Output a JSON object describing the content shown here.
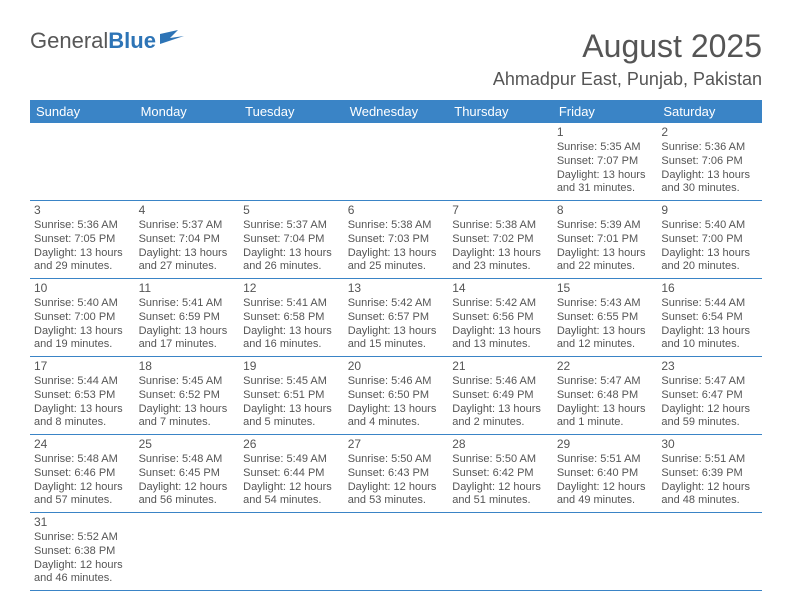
{
  "brand": {
    "part1": "General",
    "part2": "Blue"
  },
  "title": "August 2025",
  "location": "Ahmadpur East, Punjab, Pakistan",
  "colors": {
    "header_bg": "#3a84c6",
    "header_text": "#ffffff",
    "text": "#555555",
    "border": "#3a84c6",
    "brand_blue": "#2d74b6"
  },
  "fonts": {
    "title_size": 32,
    "location_size": 18,
    "header_size": 13,
    "cell_size": 11,
    "daynum_size": 12
  },
  "day_headers": [
    "Sunday",
    "Monday",
    "Tuesday",
    "Wednesday",
    "Thursday",
    "Friday",
    "Saturday"
  ],
  "weeks": [
    [
      {
        "n": "",
        "sr": "",
        "ss": "",
        "dl": ""
      },
      {
        "n": "",
        "sr": "",
        "ss": "",
        "dl": ""
      },
      {
        "n": "",
        "sr": "",
        "ss": "",
        "dl": ""
      },
      {
        "n": "",
        "sr": "",
        "ss": "",
        "dl": ""
      },
      {
        "n": "",
        "sr": "",
        "ss": "",
        "dl": ""
      },
      {
        "n": "1",
        "sr": "Sunrise: 5:35 AM",
        "ss": "Sunset: 7:07 PM",
        "dl": "Daylight: 13 hours and 31 minutes."
      },
      {
        "n": "2",
        "sr": "Sunrise: 5:36 AM",
        "ss": "Sunset: 7:06 PM",
        "dl": "Daylight: 13 hours and 30 minutes."
      }
    ],
    [
      {
        "n": "3",
        "sr": "Sunrise: 5:36 AM",
        "ss": "Sunset: 7:05 PM",
        "dl": "Daylight: 13 hours and 29 minutes."
      },
      {
        "n": "4",
        "sr": "Sunrise: 5:37 AM",
        "ss": "Sunset: 7:04 PM",
        "dl": "Daylight: 13 hours and 27 minutes."
      },
      {
        "n": "5",
        "sr": "Sunrise: 5:37 AM",
        "ss": "Sunset: 7:04 PM",
        "dl": "Daylight: 13 hours and 26 minutes."
      },
      {
        "n": "6",
        "sr": "Sunrise: 5:38 AM",
        "ss": "Sunset: 7:03 PM",
        "dl": "Daylight: 13 hours and 25 minutes."
      },
      {
        "n": "7",
        "sr": "Sunrise: 5:38 AM",
        "ss": "Sunset: 7:02 PM",
        "dl": "Daylight: 13 hours and 23 minutes."
      },
      {
        "n": "8",
        "sr": "Sunrise: 5:39 AM",
        "ss": "Sunset: 7:01 PM",
        "dl": "Daylight: 13 hours and 22 minutes."
      },
      {
        "n": "9",
        "sr": "Sunrise: 5:40 AM",
        "ss": "Sunset: 7:00 PM",
        "dl": "Daylight: 13 hours and 20 minutes."
      }
    ],
    [
      {
        "n": "10",
        "sr": "Sunrise: 5:40 AM",
        "ss": "Sunset: 7:00 PM",
        "dl": "Daylight: 13 hours and 19 minutes."
      },
      {
        "n": "11",
        "sr": "Sunrise: 5:41 AM",
        "ss": "Sunset: 6:59 PM",
        "dl": "Daylight: 13 hours and 17 minutes."
      },
      {
        "n": "12",
        "sr": "Sunrise: 5:41 AM",
        "ss": "Sunset: 6:58 PM",
        "dl": "Daylight: 13 hours and 16 minutes."
      },
      {
        "n": "13",
        "sr": "Sunrise: 5:42 AM",
        "ss": "Sunset: 6:57 PM",
        "dl": "Daylight: 13 hours and 15 minutes."
      },
      {
        "n": "14",
        "sr": "Sunrise: 5:42 AM",
        "ss": "Sunset: 6:56 PM",
        "dl": "Daylight: 13 hours and 13 minutes."
      },
      {
        "n": "15",
        "sr": "Sunrise: 5:43 AM",
        "ss": "Sunset: 6:55 PM",
        "dl": "Daylight: 13 hours and 12 minutes."
      },
      {
        "n": "16",
        "sr": "Sunrise: 5:44 AM",
        "ss": "Sunset: 6:54 PM",
        "dl": "Daylight: 13 hours and 10 minutes."
      }
    ],
    [
      {
        "n": "17",
        "sr": "Sunrise: 5:44 AM",
        "ss": "Sunset: 6:53 PM",
        "dl": "Daylight: 13 hours and 8 minutes."
      },
      {
        "n": "18",
        "sr": "Sunrise: 5:45 AM",
        "ss": "Sunset: 6:52 PM",
        "dl": "Daylight: 13 hours and 7 minutes."
      },
      {
        "n": "19",
        "sr": "Sunrise: 5:45 AM",
        "ss": "Sunset: 6:51 PM",
        "dl": "Daylight: 13 hours and 5 minutes."
      },
      {
        "n": "20",
        "sr": "Sunrise: 5:46 AM",
        "ss": "Sunset: 6:50 PM",
        "dl": "Daylight: 13 hours and 4 minutes."
      },
      {
        "n": "21",
        "sr": "Sunrise: 5:46 AM",
        "ss": "Sunset: 6:49 PM",
        "dl": "Daylight: 13 hours and 2 minutes."
      },
      {
        "n": "22",
        "sr": "Sunrise: 5:47 AM",
        "ss": "Sunset: 6:48 PM",
        "dl": "Daylight: 13 hours and 1 minute."
      },
      {
        "n": "23",
        "sr": "Sunrise: 5:47 AM",
        "ss": "Sunset: 6:47 PM",
        "dl": "Daylight: 12 hours and 59 minutes."
      }
    ],
    [
      {
        "n": "24",
        "sr": "Sunrise: 5:48 AM",
        "ss": "Sunset: 6:46 PM",
        "dl": "Daylight: 12 hours and 57 minutes."
      },
      {
        "n": "25",
        "sr": "Sunrise: 5:48 AM",
        "ss": "Sunset: 6:45 PM",
        "dl": "Daylight: 12 hours and 56 minutes."
      },
      {
        "n": "26",
        "sr": "Sunrise: 5:49 AM",
        "ss": "Sunset: 6:44 PM",
        "dl": "Daylight: 12 hours and 54 minutes."
      },
      {
        "n": "27",
        "sr": "Sunrise: 5:50 AM",
        "ss": "Sunset: 6:43 PM",
        "dl": "Daylight: 12 hours and 53 minutes."
      },
      {
        "n": "28",
        "sr": "Sunrise: 5:50 AM",
        "ss": "Sunset: 6:42 PM",
        "dl": "Daylight: 12 hours and 51 minutes."
      },
      {
        "n": "29",
        "sr": "Sunrise: 5:51 AM",
        "ss": "Sunset: 6:40 PM",
        "dl": "Daylight: 12 hours and 49 minutes."
      },
      {
        "n": "30",
        "sr": "Sunrise: 5:51 AM",
        "ss": "Sunset: 6:39 PM",
        "dl": "Daylight: 12 hours and 48 minutes."
      }
    ],
    [
      {
        "n": "31",
        "sr": "Sunrise: 5:52 AM",
        "ss": "Sunset: 6:38 PM",
        "dl": "Daylight: 12 hours and 46 minutes."
      },
      {
        "n": "",
        "sr": "",
        "ss": "",
        "dl": ""
      },
      {
        "n": "",
        "sr": "",
        "ss": "",
        "dl": ""
      },
      {
        "n": "",
        "sr": "",
        "ss": "",
        "dl": ""
      },
      {
        "n": "",
        "sr": "",
        "ss": "",
        "dl": ""
      },
      {
        "n": "",
        "sr": "",
        "ss": "",
        "dl": ""
      },
      {
        "n": "",
        "sr": "",
        "ss": "",
        "dl": ""
      }
    ]
  ]
}
